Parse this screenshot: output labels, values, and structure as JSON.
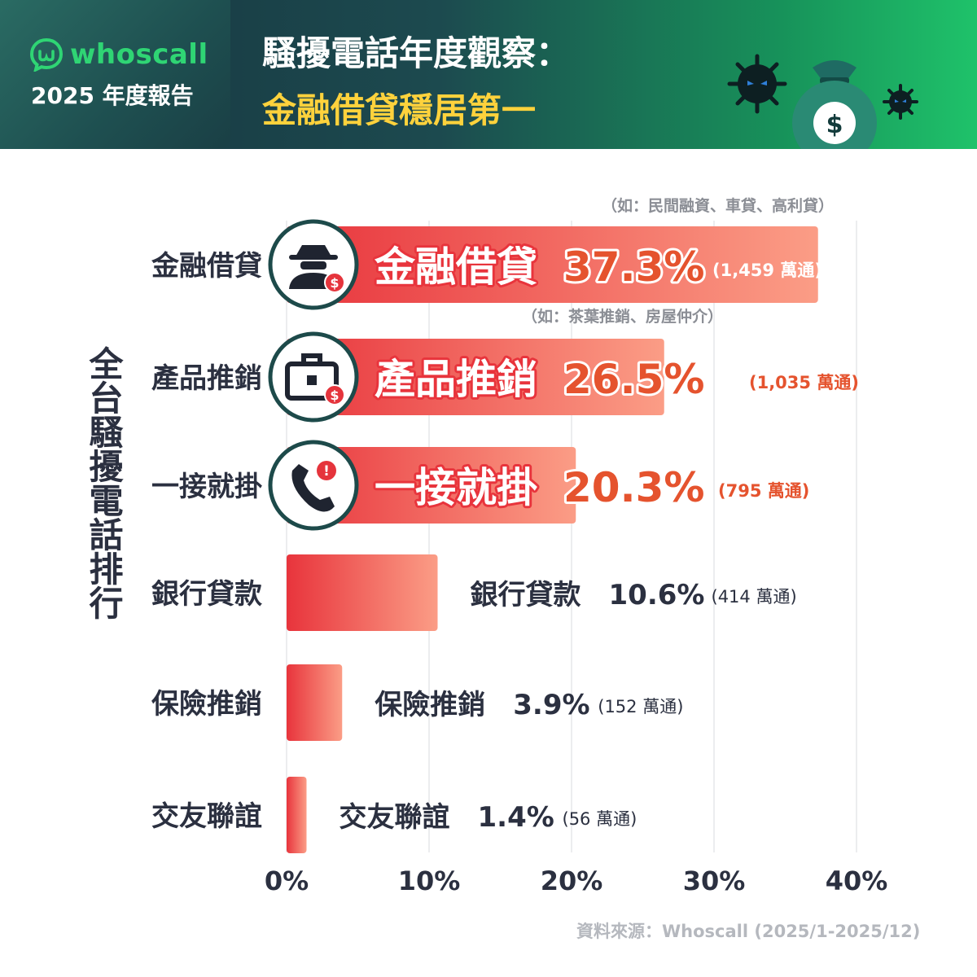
{
  "brand": {
    "name": "whoscall",
    "report_label": "2025 年度報告"
  },
  "title": {
    "line1": "騷擾電話年度觀察：",
    "line2": "金融借貸穩居第一"
  },
  "colors": {
    "bar_start": "#e8343c",
    "bar_end": "#fb9d86",
    "accent_text": "#e5532e",
    "dark_text": "#2b3040",
    "icon_ring": "#1d4a4a"
  },
  "chart_data": {
    "type": "bar",
    "orientation": "horizontal",
    "ylabel": "全台騷擾電話排行",
    "xlim": [
      0,
      40
    ],
    "xticks": [
      "0%",
      "10%",
      "20%",
      "30%",
      "40%"
    ],
    "grid": true,
    "source": "資料來源：Whoscall (2025/1-2025/12)",
    "categories": [
      "金融借貸",
      "產品推銷",
      "一接就掛",
      "銀行貸款",
      "保險推銷",
      "交友聯誼"
    ],
    "values": [
      37.3,
      26.5,
      20.3,
      10.6,
      3.9,
      1.4
    ],
    "value_labels": [
      "37.3%",
      "26.5%",
      "20.3%",
      "10.6%",
      "3.9%",
      "1.4%"
    ],
    "call_counts": [
      "(1,459 萬通)",
      "(1,035 萬通)",
      "(795 萬通)",
      "(414 萬通)",
      "(152 萬通)",
      "(56 萬通)"
    ],
    "annotations": [
      "（如：民間融資、車貸、高利貸）",
      "（如：茶葉推銷、房屋仲介）"
    ],
    "icons": [
      "spy-with-dollar-icon",
      "briefcase-dollar-icon",
      "phone-alert-icon"
    ]
  }
}
